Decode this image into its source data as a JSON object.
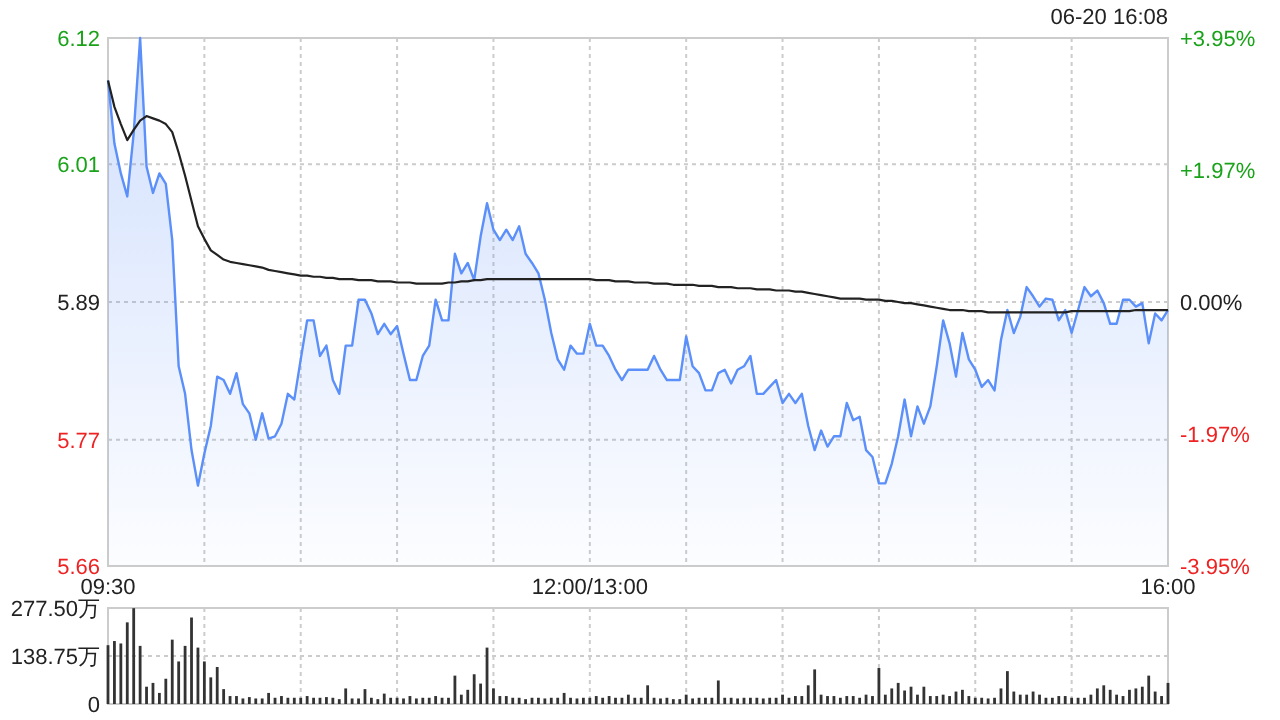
{
  "chart_data": [
    {
      "type": "line",
      "grid": true,
      "annotations": [
        "06-20 16:08"
      ],
      "categories": [
        "09:30",
        null,
        null,
        null,
        null,
        null,
        null,
        null,
        null,
        null,
        null,
        null,
        null,
        null,
        null,
        null,
        null,
        null,
        null,
        null,
        null,
        null,
        null,
        null,
        null,
        null,
        null,
        null,
        null,
        null,
        null,
        null,
        null,
        null,
        null,
        null,
        null,
        null,
        null,
        null,
        null,
        null,
        null,
        null,
        null,
        null,
        null,
        null,
        null,
        null,
        null,
        null,
        null,
        null,
        null,
        null,
        null,
        null,
        null,
        null,
        null,
        null,
        null,
        null,
        null,
        null,
        null,
        null,
        null,
        null,
        null,
        null,
        null,
        null,
        null,
        "12:00/13:00",
        null,
        null,
        null,
        null,
        null,
        null,
        null,
        null,
        null,
        null,
        null,
        null,
        null,
        null,
        null,
        null,
        null,
        null,
        null,
        null,
        null,
        null,
        null,
        null,
        null,
        null,
        null,
        null,
        null,
        null,
        null,
        null,
        null,
        null,
        null,
        null,
        null,
        null,
        null,
        null,
        null,
        null,
        null,
        null,
        null,
        null,
        null,
        null,
        null,
        null,
        null,
        null,
        null,
        null,
        null,
        null,
        null,
        null,
        null,
        null,
        null,
        null,
        null,
        null,
        null,
        null,
        null,
        null,
        null,
        null,
        null,
        null,
        null,
        null,
        null,
        null,
        null,
        null,
        null,
        null,
        null,
        null,
        null,
        null,
        null,
        null,
        null,
        null,
        null,
        "16:00"
      ],
      "ylim": [
        5.66,
        6.12
      ],
      "yticks": [
        5.66,
        5.77,
        5.89,
        6.01,
        6.12
      ],
      "y2lim": [
        -3.95,
        3.95
      ],
      "y2ticks": [
        {
          "value": -3.95,
          "label": "-3.95%"
        },
        {
          "value": -1.97,
          "label": "-1.97%"
        },
        {
          "value": 0,
          "label": "0.00%"
        },
        {
          "value": 1.97,
          "label": "+1.97%"
        },
        {
          "value": 3.95,
          "label": "+3.95%"
        }
      ],
      "series": [
        {
          "type": "area",
          "color": "#5b8ff9",
          "values": [
            6.083,
            6.028,
            6.002,
            5.982,
            6.037,
            6.12,
            6.008,
            5.985,
            6.002,
            5.993,
            5.944,
            5.834,
            5.81,
            5.761,
            5.73,
            5.758,
            5.782,
            5.825,
            5.822,
            5.81,
            5.828,
            5.801,
            5.793,
            5.77,
            5.793,
            5.771,
            5.773,
            5.784,
            5.81,
            5.805,
            5.84,
            5.874,
            5.874,
            5.843,
            5.852,
            5.822,
            5.81,
            5.852,
            5.852,
            5.892,
            5.892,
            5.88,
            5.862,
            5.871,
            5.862,
            5.869,
            5.845,
            5.822,
            5.822,
            5.843,
            5.852,
            5.892,
            5.874,
            5.874,
            5.932,
            5.915,
            5.924,
            5.909,
            5.947,
            5.976,
            5.953,
            5.944,
            5.953,
            5.944,
            5.956,
            5.932,
            5.924,
            5.915,
            5.892,
            5.863,
            5.84,
            5.831,
            5.852,
            5.845,
            5.845,
            5.871,
            5.852,
            5.852,
            5.843,
            5.831,
            5.822,
            5.831,
            5.831,
            5.831,
            5.831,
            5.843,
            5.831,
            5.822,
            5.822,
            5.822,
            5.86,
            5.834,
            5.828,
            5.813,
            5.813,
            5.828,
            5.831,
            5.819,
            5.831,
            5.834,
            5.843,
            5.81,
            5.81,
            5.816,
            5.822,
            5.802,
            5.81,
            5.802,
            5.81,
            5.782,
            5.761,
            5.778,
            5.764,
            5.773,
            5.773,
            5.802,
            5.787,
            5.79,
            5.761,
            5.755,
            5.732,
            5.732,
            5.749,
            5.773,
            5.805,
            5.773,
            5.799,
            5.784,
            5.799,
            5.834,
            5.874,
            5.854,
            5.825,
            5.863,
            5.84,
            5.831,
            5.816,
            5.822,
            5.813,
            5.857,
            5.883,
            5.863,
            5.877,
            5.903,
            5.895,
            5.886,
            5.893,
            5.892,
            5.874,
            5.883,
            5.863,
            5.883,
            5.903,
            5.895,
            5.9,
            5.889,
            5.871,
            5.871,
            5.892,
            5.892,
            5.886,
            5.889,
            5.854,
            5.88,
            5.874,
            5.883
          ]
        },
        {
          "type": "line",
          "color": "#222222",
          "values": [
            6.083,
            6.06,
            6.045,
            6.031,
            6.04,
            6.048,
            6.052,
            6.05,
            6.048,
            6.045,
            6.038,
            6.02,
            6.0,
            5.978,
            5.956,
            5.945,
            5.935,
            5.931,
            5.927,
            5.925,
            5.924,
            5.923,
            5.922,
            5.921,
            5.92,
            5.918,
            5.917,
            5.916,
            5.915,
            5.914,
            5.913,
            5.913,
            5.912,
            5.912,
            5.911,
            5.911,
            5.91,
            5.91,
            5.91,
            5.909,
            5.909,
            5.909,
            5.908,
            5.908,
            5.908,
            5.907,
            5.907,
            5.907,
            5.906,
            5.906,
            5.906,
            5.906,
            5.906,
            5.907,
            5.907,
            5.908,
            5.908,
            5.909,
            5.909,
            5.91,
            5.91,
            5.91,
            5.91,
            5.91,
            5.91,
            5.91,
            5.91,
            5.91,
            5.91,
            5.91,
            5.91,
            5.91,
            5.91,
            5.91,
            5.91,
            5.91,
            5.909,
            5.909,
            5.909,
            5.908,
            5.908,
            5.908,
            5.907,
            5.907,
            5.907,
            5.906,
            5.906,
            5.906,
            5.905,
            5.905,
            5.905,
            5.905,
            5.904,
            5.904,
            5.904,
            5.903,
            5.903,
            5.903,
            5.902,
            5.902,
            5.902,
            5.901,
            5.901,
            5.901,
            5.9,
            5.9,
            5.9,
            5.899,
            5.899,
            5.898,
            5.897,
            5.896,
            5.895,
            5.894,
            5.893,
            5.893,
            5.893,
            5.893,
            5.892,
            5.892,
            5.892,
            5.891,
            5.891,
            5.89,
            5.889,
            5.889,
            5.888,
            5.887,
            5.886,
            5.885,
            5.884,
            5.883,
            5.883,
            5.883,
            5.882,
            5.882,
            5.882,
            5.881,
            5.881,
            5.881,
            5.881,
            5.881,
            5.881,
            5.881,
            5.881,
            5.881,
            5.881,
            5.881,
            5.881,
            5.881,
            5.882,
            5.882,
            5.882,
            5.882,
            5.882,
            5.882,
            5.882,
            5.882,
            5.882,
            5.882,
            5.883,
            5.883,
            5.883,
            5.883,
            5.883,
            5.883
          ]
        }
      ]
    },
    {
      "type": "bar",
      "tick_labels": "y",
      "grid": true,
      "categories": [
        null,
        null,
        null,
        null,
        null,
        null,
        null,
        null,
        null,
        null,
        null,
        null,
        null,
        null,
        null,
        null,
        null,
        null,
        null,
        null,
        null,
        null,
        null,
        null,
        null,
        null,
        null,
        null,
        null,
        null,
        null,
        null,
        null,
        null,
        null,
        null,
        null,
        null,
        null,
        null,
        null,
        null,
        null,
        null,
        null,
        null,
        null,
        null,
        null,
        null,
        null,
        null,
        null,
        null,
        null,
        null,
        null,
        null,
        null,
        null,
        null,
        null,
        null,
        null,
        null,
        null,
        null,
        null,
        null,
        null,
        null,
        null,
        null,
        null,
        null,
        null,
        null,
        null,
        null,
        null,
        null,
        null,
        null,
        null,
        null,
        null,
        null,
        null,
        null,
        null,
        null,
        null,
        null,
        null,
        null,
        null,
        null,
        null,
        null,
        null,
        null,
        null,
        null,
        null,
        null,
        null,
        null,
        null,
        null,
        null,
        null,
        null,
        null,
        null,
        null,
        null,
        null,
        null,
        null,
        null,
        null,
        null,
        null,
        null,
        null,
        null,
        null,
        null,
        null,
        null,
        null,
        null,
        null,
        null,
        null,
        null,
        null,
        null,
        null,
        null,
        null,
        null,
        null,
        null,
        null,
        null,
        null,
        null,
        null,
        null,
        null,
        null,
        null,
        null,
        null,
        null,
        null,
        null,
        null,
        null,
        null,
        null,
        null,
        null,
        null,
        null
      ],
      "ylim": [
        0,
        277.5
      ],
      "yticks": [
        {
          "value": 0,
          "label": "0"
        },
        {
          "value": 138.75,
          "label": "138.75万"
        },
        {
          "value": 277.5,
          "label": "277.50万"
        }
      ],
      "series": [
        {
          "color": "#333333",
          "values": [
            170,
            182,
            175,
            236,
            277,
            168,
            50,
            61,
            32,
            73,
            186,
            123,
            168,
            250,
            163,
            123,
            77,
            107,
            43,
            23,
            23,
            16,
            20,
            16,
            16,
            32,
            18,
            23,
            18,
            18,
            18,
            23,
            18,
            18,
            20,
            18,
            14,
            45,
            16,
            16,
            43,
            18,
            14,
            30,
            18,
            18,
            16,
            23,
            16,
            18,
            18,
            23,
            18,
            18,
            82,
            27,
            41,
            86,
            59,
            163,
            45,
            23,
            23,
            18,
            18,
            14,
            18,
            18,
            16,
            18,
            18,
            32,
            18,
            16,
            18,
            18,
            23,
            18,
            23,
            18,
            18,
            27,
            18,
            18,
            54,
            18,
            16,
            18,
            14,
            14,
            27,
            16,
            18,
            18,
            18,
            68,
            18,
            18,
            16,
            18,
            18,
            18,
            16,
            18,
            18,
            27,
            18,
            23,
            23,
            54,
            100,
            27,
            23,
            23,
            18,
            23,
            23,
            18,
            27,
            23,
            104,
            27,
            45,
            61,
            39,
            50,
            27,
            50,
            23,
            23,
            27,
            23,
            36,
            41,
            23,
            18,
            18,
            16,
            18,
            45,
            95,
            36,
            27,
            27,
            36,
            27,
            18,
            18,
            23,
            23,
            18,
            18,
            18,
            27,
            45,
            54,
            41,
            27,
            23,
            41,
            45,
            50,
            82,
            36,
            23,
            61
          ]
        }
      ]
    }
  ]
}
